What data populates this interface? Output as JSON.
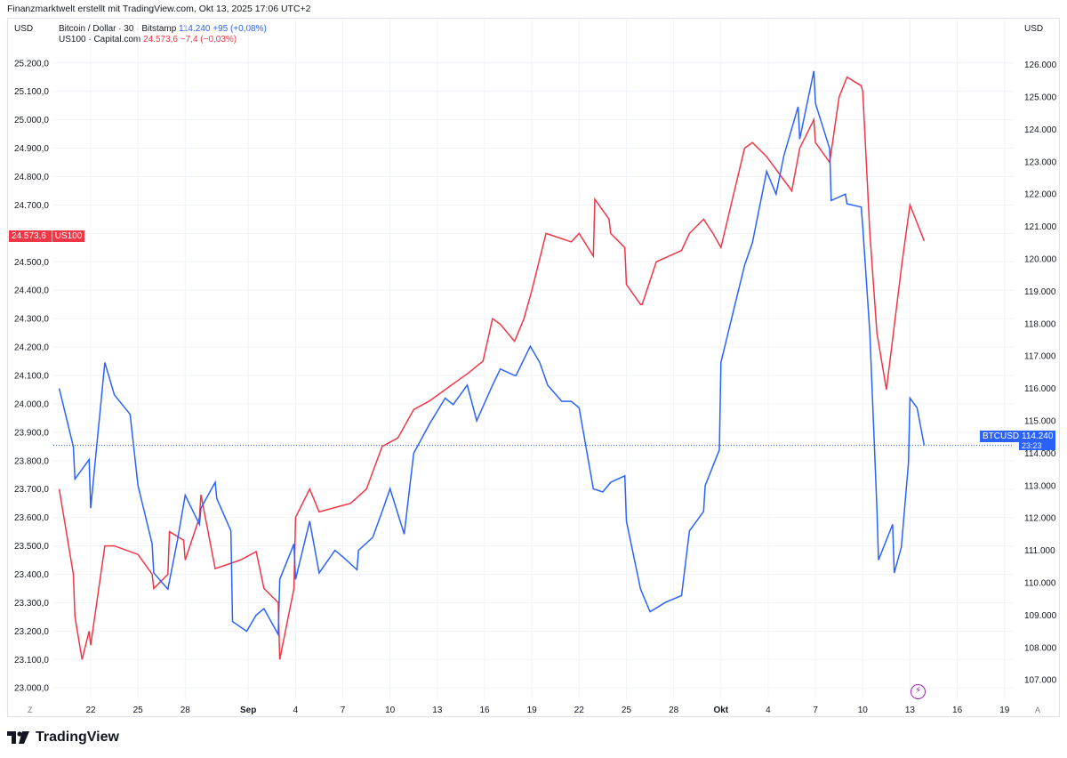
{
  "header": {
    "attribution": "Finanzmarktwelt erstellt mit TradingView.com, Okt 13, 2025 17:06 UTC+2"
  },
  "axes": {
    "left_unit": "USD",
    "right_unit": "USD"
  },
  "legend": {
    "btc": {
      "name": "Bitcoin / Dollar · 30 · Bitstamp",
      "value": "114.240",
      "change": "+95 (+0,08%)"
    },
    "ndx": {
      "name": "US100 · Capital.com",
      "value": "24.573,6",
      "change": "−7,4 (−0,03%)"
    }
  },
  "price_tags": {
    "left_value": "24.573,6",
    "left_symbol": "US100",
    "right_symbol": "BTCUSD",
    "right_value": "114.240",
    "right_countdown": "23:23"
  },
  "footer": {
    "brand": "TradingView",
    "left_corner": "Z",
    "right_corner": "A"
  },
  "colors": {
    "btc": "#2962ff",
    "ndx": "#f23645",
    "grid": "#f0f3fa"
  },
  "chart_data": {
    "type": "line",
    "x_tick_labels": [
      "22",
      "25",
      "28",
      "Sep",
      "4",
      "7",
      "10",
      "13",
      "16",
      "19",
      "22",
      "25",
      "28",
      "Okt",
      "4",
      "7",
      "10",
      "13",
      "16",
      "19"
    ],
    "left_axis": {
      "label": "USD",
      "ticks": [
        "23.000,0",
        "23.100,0",
        "23.200,0",
        "23.300,0",
        "23.400,0",
        "23.500,0",
        "23.600,0",
        "23.700,0",
        "23.800,0",
        "23.900,0",
        "24.000,0",
        "24.100,0",
        "24.200,0",
        "24.300,0",
        "24.400,0",
        "24.500,0",
        "24.600,0",
        "24.700,0",
        "24.800,0",
        "24.900,0",
        "25.000,0",
        "25.100,0",
        "25.200,0"
      ],
      "range": [
        22960,
        25240
      ]
    },
    "right_axis": {
      "label": "USD",
      "ticks": [
        "107.000",
        "108.000",
        "109.000",
        "110.000",
        "111.000",
        "112.000",
        "113.000",
        "114.000",
        "115.000",
        "116.000",
        "117.000",
        "118.000",
        "119.000",
        "120.000",
        "121.000",
        "122.000",
        "123.000",
        "124.000",
        "125.000",
        "126.000"
      ],
      "range": [
        106400,
        126400
      ]
    },
    "series": [
      {
        "name": "Bitcoin / Dollar · 30 · Bitstamp",
        "axis": "right",
        "points": [
          [
            "Aug 20",
            116000
          ],
          [
            "Aug 20",
            114200
          ],
          [
            "Aug 21",
            113200
          ],
          [
            "Aug 21",
            113800
          ],
          [
            "Aug 22",
            112300
          ],
          [
            "Aug 22",
            116800
          ],
          [
            "Aug 23",
            115800
          ],
          [
            "Aug 24",
            115200
          ],
          [
            "Aug 25",
            113000
          ],
          [
            "Aug 25",
            111200
          ],
          [
            "Aug 26",
            110300
          ],
          [
            "Aug 26",
            109800
          ],
          [
            "Aug 27",
            111300
          ],
          [
            "Aug 28",
            112700
          ],
          [
            "Aug 28",
            111800
          ],
          [
            "Aug 29",
            112300
          ],
          [
            "Aug 29",
            113100
          ],
          [
            "Aug 30",
            112600
          ],
          [
            "Aug 30",
            111600
          ],
          [
            "Aug 31",
            108800
          ],
          [
            "Aug 31",
            108500
          ],
          [
            "Sep 1",
            109000
          ],
          [
            "Sep 2",
            109200
          ],
          [
            "Sep 2",
            108400
          ],
          [
            "Sep 3",
            110100
          ],
          [
            "Sep 3",
            111200
          ],
          [
            "Sep 4",
            110100
          ],
          [
            "Sep 4",
            111900
          ],
          [
            "Sep 5",
            110300
          ],
          [
            "Sep 6",
            111000
          ],
          [
            "Sep 7",
            110800
          ],
          [
            "Sep 7",
            110400
          ],
          [
            "Sep 8",
            111000
          ],
          [
            "Sep 8",
            111400
          ],
          [
            "Sep 9",
            112200
          ],
          [
            "Sep 10",
            112900
          ],
          [
            "Sep 10",
            111500
          ],
          [
            "Sep 11",
            114000
          ],
          [
            "Sep 12",
            114900
          ],
          [
            "Sep 13",
            115700
          ],
          [
            "Sep 14",
            115500
          ],
          [
            "Sep 14",
            116100
          ],
          [
            "Sep 15",
            115000
          ],
          [
            "Sep 16",
            116100
          ],
          [
            "Sep 17",
            116600
          ],
          [
            "Sep 17",
            116400
          ],
          [
            "Sep 18",
            116400
          ],
          [
            "Sep 18",
            117300
          ],
          [
            "Sep 19",
            116800
          ],
          [
            "Sep 20",
            116100
          ],
          [
            "Sep 20",
            115600
          ],
          [
            "Sep 21",
            115600
          ],
          [
            "Sep 22",
            115400
          ],
          [
            "Sep 22",
            112900
          ],
          [
            "Sep 23",
            112800
          ],
          [
            "Sep 24",
            113100
          ],
          [
            "Sep 24",
            113300
          ],
          [
            "Sep 25",
            111900
          ],
          [
            "Sep 25",
            109800
          ],
          [
            "Sep 26",
            109100
          ],
          [
            "Sep 27",
            109400
          ],
          [
            "Sep 28",
            109600
          ],
          [
            "Sep 29",
            111600
          ],
          [
            "Sep 29",
            112200
          ],
          [
            "Sep 30",
            113000
          ],
          [
            "Sep 30",
            114100
          ],
          [
            "Okt 1",
            116800
          ],
          [
            "Okt 1",
            118600
          ],
          [
            "Okt 2",
            119800
          ],
          [
            "Okt 3",
            120500
          ],
          [
            "Okt 3",
            122700
          ],
          [
            "Okt 4",
            122000
          ],
          [
            "Okt 5",
            123200
          ],
          [
            "Okt 5",
            124700
          ],
          [
            "Okt 6",
            123700
          ],
          [
            "Okt 6",
            125800
          ],
          [
            "Okt 7",
            124800
          ],
          [
            "Okt 7",
            123400
          ],
          [
            "Okt 8",
            121800
          ],
          [
            "Okt 8",
            122000
          ],
          [
            "Okt 9",
            121700
          ],
          [
            "Okt 9",
            121600
          ],
          [
            "Okt 10",
            121000
          ],
          [
            "Okt 10",
            117700
          ],
          [
            "Okt 10",
            112300
          ],
          [
            "Okt 11",
            110700
          ],
          [
            "Okt 11",
            111800
          ],
          [
            "Okt 12",
            110300
          ],
          [
            "Okt 12",
            111100
          ],
          [
            "Okt 12",
            113700
          ],
          [
            "Okt 13",
            115700
          ],
          [
            "Okt 13",
            115400
          ],
          [
            "Okt 13",
            114240
          ]
        ]
      },
      {
        "name": "US100 · Capital.com",
        "axis": "left",
        "points": [
          [
            "Aug 20",
            23700
          ],
          [
            "Aug 20",
            23400
          ],
          [
            "Aug 21",
            23250
          ],
          [
            "Aug 21",
            23100
          ],
          [
            "Aug 21",
            23200
          ],
          [
            "Aug 22",
            23150
          ],
          [
            "Aug 22",
            23500
          ],
          [
            "Aug 23",
            23500
          ],
          [
            "Aug 25",
            23470
          ],
          [
            "Aug 25",
            23400
          ],
          [
            "Aug 26",
            23350
          ],
          [
            "Aug 26",
            23400
          ],
          [
            "Aug 27",
            23550
          ],
          [
            "Aug 27",
            23520
          ],
          [
            "Aug 28",
            23450
          ],
          [
            "Aug 28",
            23600
          ],
          [
            "Aug 29",
            23680
          ],
          [
            "Aug 29",
            23420
          ],
          [
            "Aug 31",
            23450
          ],
          [
            "Sep 1",
            23480
          ],
          [
            "Sep 2",
            23350
          ],
          [
            "Sep 2",
            23300
          ],
          [
            "Sep 3",
            23100
          ],
          [
            "Sep 3",
            23350
          ],
          [
            "Sep 4",
            23600
          ],
          [
            "Sep 4",
            23700
          ],
          [
            "Sep 5",
            23620
          ],
          [
            "Sep 7",
            23650
          ],
          [
            "Sep 8",
            23700
          ],
          [
            "Sep 9",
            23850
          ],
          [
            "Sep 10",
            23880
          ],
          [
            "Sep 11",
            23980
          ],
          [
            "Sep 12",
            24010
          ],
          [
            "Sep 14",
            24090
          ],
          [
            "Sep 15",
            24110
          ],
          [
            "Sep 15",
            24150
          ],
          [
            "Sep 16",
            24300
          ],
          [
            "Sep 17",
            24280
          ],
          [
            "Sep 17",
            24220
          ],
          [
            "Sep 18",
            24300
          ],
          [
            "Sep 19",
            24400
          ],
          [
            "Sep 19",
            24600
          ],
          [
            "Sep 21",
            24570
          ],
          [
            "Sep 22",
            24600
          ],
          [
            "Sep 22",
            24520
          ],
          [
            "Sep 23",
            24720
          ],
          [
            "Sep 23",
            24650
          ],
          [
            "Sep 24",
            24600
          ],
          [
            "Sep 24",
            24550
          ],
          [
            "Sep 25",
            24420
          ],
          [
            "Sep 25",
            24350
          ],
          [
            "Sep 26",
            24350
          ],
          [
            "Sep 26",
            24500
          ],
          [
            "Sep 28",
            24540
          ],
          [
            "Sep 29",
            24600
          ],
          [
            "Sep 29",
            24650
          ],
          [
            "Sep 30",
            24600
          ],
          [
            "Okt 1",
            24550
          ],
          [
            "Okt 1",
            24760
          ],
          [
            "Okt 2",
            24900
          ],
          [
            "Okt 3",
            24920
          ],
          [
            "Okt 3",
            24870
          ],
          [
            "Okt 5",
            24750
          ],
          [
            "Okt 6",
            24900
          ],
          [
            "Okt 6",
            25000
          ],
          [
            "Okt 7",
            24920
          ],
          [
            "Okt 7",
            24850
          ],
          [
            "Okt 8",
            25080
          ],
          [
            "Okt 9",
            25150
          ],
          [
            "Okt 9",
            25120
          ],
          [
            "Okt 10",
            25100
          ],
          [
            "Okt 10",
            24600
          ],
          [
            "Okt 10",
            24250
          ],
          [
            "Okt 11",
            24050
          ],
          [
            "Okt 12",
            24500
          ],
          [
            "Okt 13",
            24700
          ],
          [
            "Okt 13",
            24573.6
          ]
        ]
      }
    ],
    "last_values": {
      "btc": 114240,
      "ndx": 24573.6
    }
  }
}
